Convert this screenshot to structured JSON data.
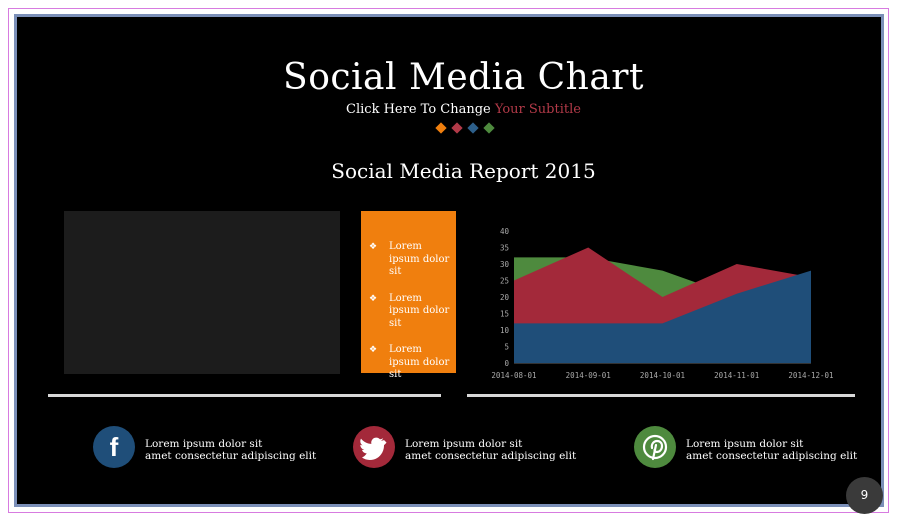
{
  "slide": {
    "title": "Social Media Chart",
    "subtitle_main": "Click Here To Change ",
    "subtitle_accent": "Your Subtitle",
    "report_title": "Social Media Report 2015",
    "page_number": "9"
  },
  "colors": {
    "orange": "#f07f0e",
    "red": "#b23a48",
    "blue": "#2d5f8a",
    "green": "#4e8a3e"
  },
  "bullets": [
    {
      "symbol": "❖",
      "text": "Lorem ipsum dolor sit"
    },
    {
      "symbol": "❖",
      "text": "Lorem ipsum dolor sit"
    },
    {
      "symbol": "❖",
      "text": "Lorem ipsum dolor sit"
    }
  ],
  "social": [
    {
      "icon": "facebook-icon",
      "glyph": "f",
      "line1": "Lorem ipsum dolor sit",
      "line2": "amet consectetur adipiscing elit",
      "color": "#1f4e79"
    },
    {
      "icon": "twitter-icon",
      "glyph": "🐦",
      "line1": "Lorem ipsum dolor sit",
      "line2": "amet consectetur adipiscing elit",
      "color": "#a3293a"
    },
    {
      "icon": "pinterest-icon",
      "glyph": "P",
      "line1": "Lorem ipsum dolor sit",
      "line2": "amet consectetur adipiscing elit",
      "color": "#4e8a3e"
    }
  ],
  "chart_data": {
    "type": "area",
    "x": [
      "2014-08-01",
      "2014-09-01",
      "2014-10-01",
      "2014-11-01",
      "2014-12-01"
    ],
    "ylim": [
      0,
      40
    ],
    "yticks": [
      0,
      5,
      10,
      15,
      20,
      25,
      30,
      35,
      40
    ],
    "grid": false,
    "series": [
      {
        "values": [
          32,
          32,
          28,
          20,
          26
        ],
        "color": "#4e8a3e"
      },
      {
        "values": [
          25,
          35,
          20,
          30,
          26
        ],
        "color": "#a3293a"
      },
      {
        "values": [
          12,
          12,
          12,
          21,
          28
        ],
        "color": "#1f4e79"
      }
    ]
  }
}
